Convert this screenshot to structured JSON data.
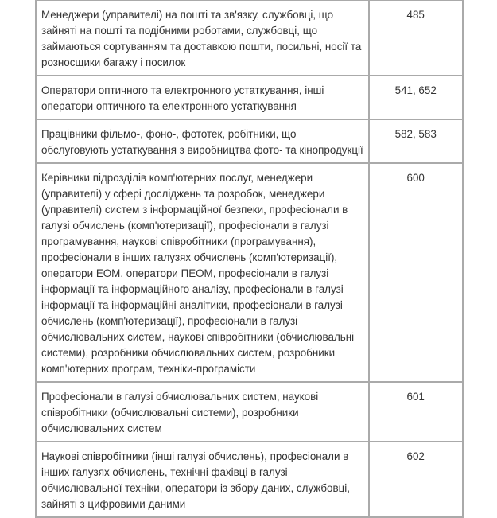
{
  "rows": [
    {
      "description": [
        "Менеджери (управителі) на пошті та зв'язку, службовці, що",
        "зайняті на пошті та подібними роботами, службовці, що",
        "займаються сортуванням та доставкою пошти, посильні, носії та",
        "розносщики багажу і посилок"
      ],
      "code": "485"
    },
    {
      "description": [
        "Оператори оптичного та електронного устаткування, інші",
        "оператори оптичного та електронного устаткування"
      ],
      "code": "541, 652"
    },
    {
      "description": [
        "Працівники фільмо-, фоно-, фототек, робітники, що",
        "обслуговують устаткування з виробництва фото- та кінопродукції"
      ],
      "code": "582, 583"
    },
    {
      "description": [
        "Керівники підрозділів комп'ютерних послуг, менеджери",
        "(управителі) у сфері досліджень та розробок, менеджери",
        "(управителі) систем з інформаційної безпеки, професіонали в",
        "галузі обчислень (комп'ютеризації), професіонали в галузі",
        "програмування, наукові співробітники (програмування),",
        "професіонали в інших галузях обчислень (комп'ютеризації),",
        "оператори ЕОМ, оператори ПЕОМ, професіонали в галузі",
        "інформації та інформаційного аналізу, професіонали в галузі",
        "інформації та інформаційні аналітики, професіонали в галузі",
        "обчислень (комп'ютеризації), професіонали в галузі",
        "обчислювальних систем, наукові співробітники (обчислювальні",
        "системи), розробники обчислювальних систем, розробники",
        "комп'ютерних програм, техніки-програмісти"
      ],
      "code": "600"
    },
    {
      "description": [
        "Професіонали в галузі обчислювальних систем, наукові",
        "співробітники (обчислювальні системи), розробники",
        "обчислювальних систем"
      ],
      "code": "601"
    },
    {
      "description": [
        "Наукові співробітники (інші галузі обчислень), професіонали в",
        "інших галузях обчислень, технічні фахівці в галузі",
        "обчислювальної техніки, оператори із збору даних, службовці,",
        "зайняті з цифровими даними"
      ],
      "code": "602"
    }
  ]
}
